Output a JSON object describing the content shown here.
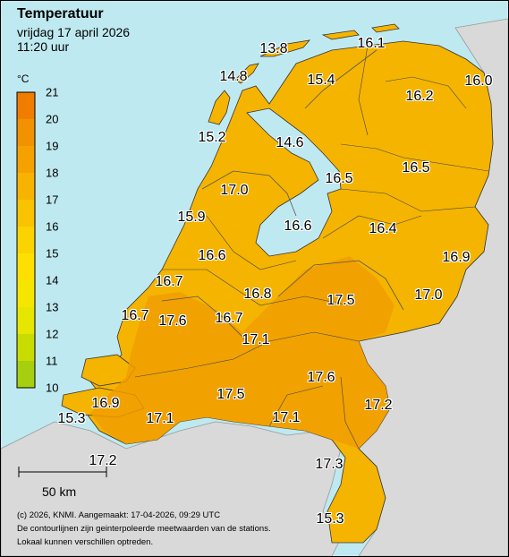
{
  "header": {
    "title": "Temperatuur",
    "date": "vrijdag 17 april 2026",
    "time": "11:20 uur"
  },
  "legend": {
    "unit": "°C",
    "ticks": [
      "21",
      "20",
      "19",
      "18",
      "17",
      "16",
      "15",
      "14",
      "13",
      "12",
      "11",
      "10"
    ],
    "colors": [
      "#f07d00",
      "#f39200",
      "#f5a200",
      "#f7b300",
      "#f9c300",
      "#fbd300",
      "#fde000",
      "#f5e600",
      "#e6e600",
      "#c8dc00",
      "#a6cf10"
    ]
  },
  "map": {
    "land_color": "#f5b400",
    "sea_color": "#bfe9f0",
    "neighbour_color": "#d9d9d9",
    "readings": [
      {
        "id": "texel-north",
        "value": "13.8"
      },
      {
        "id": "leeuwarden",
        "value": "15.4"
      },
      {
        "id": "lauwersoog",
        "value": "16.1"
      },
      {
        "id": "groningen",
        "value": "16.2"
      },
      {
        "id": "nieuw-beerta",
        "value": "16.0"
      },
      {
        "id": "texel",
        "value": "14.8"
      },
      {
        "id": "den-helder",
        "value": "15.2"
      },
      {
        "id": "stavoren",
        "value": "14.6"
      },
      {
        "id": "marknesse",
        "value": "16.5"
      },
      {
        "id": "hoogeveen",
        "value": "16.5"
      },
      {
        "id": "berkhout",
        "value": "17.0"
      },
      {
        "id": "ijmuiden",
        "value": "15.9"
      },
      {
        "id": "lelystad",
        "value": "16.6"
      },
      {
        "id": "heino",
        "value": "16.4"
      },
      {
        "id": "schiphol",
        "value": "16.6"
      },
      {
        "id": "twenthe",
        "value": "16.9"
      },
      {
        "id": "valkenburg",
        "value": "16.7"
      },
      {
        "id": "de-bilt",
        "value": "16.8"
      },
      {
        "id": "deelen",
        "value": "17.5"
      },
      {
        "id": "hupsel",
        "value": "17.0"
      },
      {
        "id": "hoek-van-holland",
        "value": "16.7"
      },
      {
        "id": "rotterdam",
        "value": "17.6"
      },
      {
        "id": "cabauw",
        "value": "16.7"
      },
      {
        "id": "herwijnen",
        "value": "17.1"
      },
      {
        "id": "volkel",
        "value": "17.6"
      },
      {
        "id": "wilhelminadorp",
        "value": "16.9"
      },
      {
        "id": "gilze-rijen",
        "value": "17.5"
      },
      {
        "id": "vlissingen",
        "value": "15.3"
      },
      {
        "id": "woensdrecht",
        "value": "17.1"
      },
      {
        "id": "eindhoven",
        "value": "17.1"
      },
      {
        "id": "arcen",
        "value": "17.2"
      },
      {
        "id": "westdorpe",
        "value": "17.2"
      },
      {
        "id": "ell",
        "value": "17.3"
      },
      {
        "id": "maastricht",
        "value": "15.3"
      }
    ]
  },
  "scale_bar": {
    "label": "50 km"
  },
  "footer": {
    "line1": "(c) 2026, KNMI. Aangemaakt: 17-04-2026, 09:29 UTC",
    "line2": "De contourlijnen zijn geinterpoleerde meetwaarden van de stations.",
    "line3": "Lokaal kunnen verschillen optreden."
  }
}
